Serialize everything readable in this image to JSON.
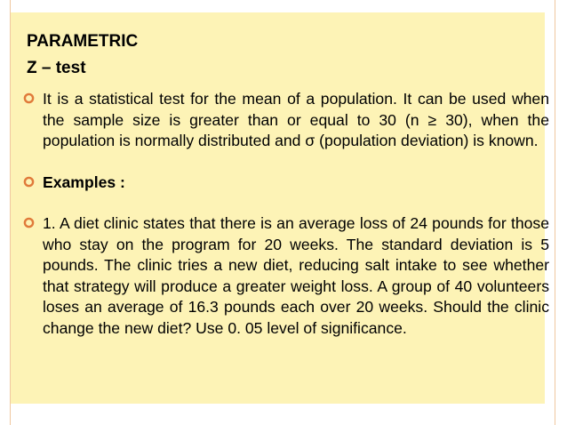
{
  "slide": {
    "title": "PARAMETRIC",
    "subtitle": "Z – test",
    "bullets": [
      {
        "text": "It is a statistical test for the mean of a population. It can be used when the sample size is greater than or equal to 30 (n ≥ 30), when the population is normally distributed and σ (population deviation) is known.",
        "icon": "ring-bullet-icon"
      },
      {
        "text": "Examples :",
        "icon": "ring-bullet-icon"
      },
      {
        "text": "1. A diet clinic states that there is an average loss of 24 pounds for those who stay on the program for 20 weeks. The standard deviation is 5 pounds. The clinic tries a new diet, reducing salt intake to see whether that strategy will produce a greater weight loss. A group of 40 volunteers loses an average of 16.3 pounds each over 20 weeks. Should the clinic change the new diet? Use 0. 05 level of significance.",
        "icon": "ring-bullet-icon"
      }
    ]
  },
  "colors": {
    "background": "#fdf3b6",
    "bullet": "#e07a3a",
    "rule": "#f0c8a0"
  }
}
